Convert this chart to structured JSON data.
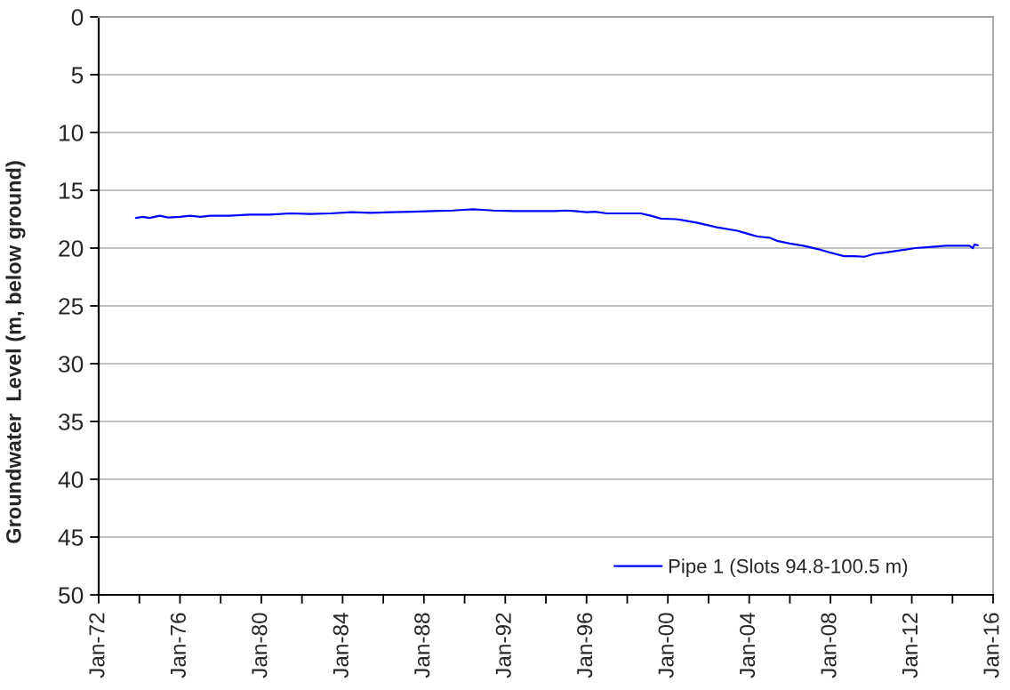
{
  "chart_data": {
    "type": "line",
    "ylabel": "Groundwater  Level (m, below ground)",
    "x": [
      "1973-11",
      "1974-03",
      "1974-07",
      "1975-01",
      "1975-06",
      "1976-01",
      "1976-07",
      "1977-01",
      "1977-07",
      "1978-06",
      "1979-06",
      "1980-06",
      "1981-06",
      "1982-06",
      "1983-06",
      "1984-06",
      "1985-06",
      "1986-06",
      "1987-06",
      "1988-06",
      "1989-06",
      "1990-06",
      "1991-06",
      "1992-06",
      "1993-06",
      "1994-06",
      "1995-01",
      "1995-06",
      "1996-01",
      "1996-06",
      "1997-01",
      "1998-01",
      "1998-09",
      "1999-03",
      "1999-09",
      "2000-06",
      "2001-06",
      "2002-06",
      "2003-06",
      "2004-01",
      "2004-06",
      "2005-01",
      "2005-06",
      "2006-01",
      "2006-09",
      "2007-06",
      "2008-01",
      "2008-09",
      "2009-03",
      "2009-09",
      "2010-03",
      "2010-09",
      "2011-06",
      "2012-03",
      "2013-01",
      "2013-09",
      "2014-06",
      "2014-11",
      "2015-01",
      "2015-02",
      "2015-04"
    ],
    "series": [
      {
        "name": "Pipe 1 (Slots 94.8-100.5 m)",
        "color": "#0000ff",
        "values": [
          17.4,
          17.3,
          17.4,
          17.2,
          17.35,
          17.3,
          17.2,
          17.3,
          17.2,
          17.2,
          17.1,
          17.1,
          17.0,
          17.05,
          17.0,
          16.9,
          16.95,
          16.9,
          16.85,
          16.8,
          16.75,
          16.65,
          16.75,
          16.8,
          16.8,
          16.8,
          16.75,
          16.8,
          16.9,
          16.85,
          17.0,
          17.0,
          17.0,
          17.2,
          17.45,
          17.5,
          17.8,
          18.2,
          18.5,
          18.8,
          19.0,
          19.1,
          19.4,
          19.6,
          19.8,
          20.1,
          20.4,
          20.7,
          20.7,
          20.75,
          20.5,
          20.4,
          20.2,
          20.0,
          19.9,
          19.8,
          19.8,
          19.8,
          20.0,
          19.7,
          19.75
        ]
      }
    ],
    "xlim": [
      "1972-01",
      "2016-01"
    ],
    "xticks": [
      {
        "value": "1972-01",
        "label": "Jan-72"
      },
      {
        "value": "1974-01",
        "label": null
      },
      {
        "value": "1976-01",
        "label": "Jan-76"
      },
      {
        "value": "1978-01",
        "label": null
      },
      {
        "value": "1980-01",
        "label": "Jan-80"
      },
      {
        "value": "1982-01",
        "label": null
      },
      {
        "value": "1984-01",
        "label": "Jan-84"
      },
      {
        "value": "1986-01",
        "label": null
      },
      {
        "value": "1988-01",
        "label": "Jan-88"
      },
      {
        "value": "1990-01",
        "label": null
      },
      {
        "value": "1992-01",
        "label": "Jan-92"
      },
      {
        "value": "1994-01",
        "label": null
      },
      {
        "value": "1996-01",
        "label": "Jan-96"
      },
      {
        "value": "1998-01",
        "label": null
      },
      {
        "value": "2000-01",
        "label": "Jan-00"
      },
      {
        "value": "2002-01",
        "label": null
      },
      {
        "value": "2004-01",
        "label": "Jan-04"
      },
      {
        "value": "2006-01",
        "label": null
      },
      {
        "value": "2008-01",
        "label": "Jan-08"
      },
      {
        "value": "2010-01",
        "label": null
      },
      {
        "value": "2012-01",
        "label": "Jan-12"
      },
      {
        "value": "2014-01",
        "label": null
      },
      {
        "value": "2016-01",
        "label": "Jan-16"
      }
    ],
    "ylim": [
      50,
      0
    ],
    "yticks": [
      0,
      5,
      10,
      15,
      20,
      25,
      30,
      35,
      40,
      45,
      50
    ],
    "grid": "y",
    "legend": "bottom right"
  }
}
